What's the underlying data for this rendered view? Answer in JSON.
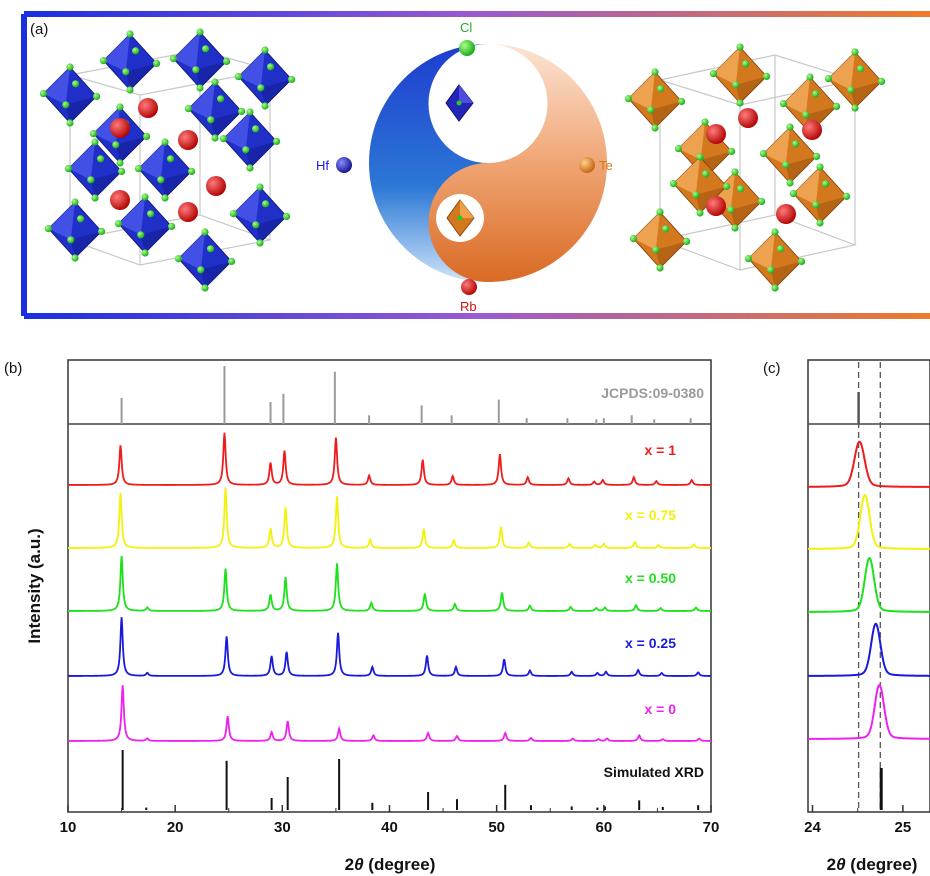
{
  "panel_labels": {
    "a": "(a)",
    "b": "(b)",
    "c": "(c)"
  },
  "elements": {
    "cl": "Cl",
    "hf": "Hf",
    "te": "Te",
    "rb": "Rb"
  },
  "colors": {
    "hf_octahedra": "#1f2fc8",
    "te_octahedra": "#d4781e",
    "cl_atoms": "#22cc22",
    "rb_atoms": "#cc1111"
  },
  "chart_data": [
    {
      "type": "line",
      "panel": "(b)",
      "xlabel_prefix": "2",
      "xlabel_theta": "θ",
      "xlabel_suffix": " (degree)",
      "ylabel": "Intensity (a.u.)",
      "xlim": [
        10,
        70
      ],
      "xticks": [
        10,
        20,
        30,
        40,
        50,
        60,
        70
      ],
      "reference_label": "JCPDS:09-0380",
      "simulated_label": "Simulated XRD",
      "reference_peaks": [
        {
          "x": 15.0,
          "h": 0.45
        },
        {
          "x": 24.6,
          "h": 1.0
        },
        {
          "x": 28.9,
          "h": 0.38
        },
        {
          "x": 30.1,
          "h": 0.52
        },
        {
          "x": 34.9,
          "h": 0.9
        },
        {
          "x": 38.1,
          "h": 0.15
        },
        {
          "x": 43.0,
          "h": 0.32
        },
        {
          "x": 45.8,
          "h": 0.15
        },
        {
          "x": 50.2,
          "h": 0.42
        },
        {
          "x": 52.8,
          "h": 0.1
        },
        {
          "x": 56.6,
          "h": 0.1
        },
        {
          "x": 59.3,
          "h": 0.08
        },
        {
          "x": 60.0,
          "h": 0.1
        },
        {
          "x": 62.6,
          "h": 0.15
        },
        {
          "x": 64.7,
          "h": 0.08
        },
        {
          "x": 68.1,
          "h": 0.1
        }
      ],
      "simulated_peaks": [
        {
          "x": 15.1,
          "h": 1.0
        },
        {
          "x": 17.3,
          "h": 0.04
        },
        {
          "x": 24.8,
          "h": 0.82
        },
        {
          "x": 29.0,
          "h": 0.2
        },
        {
          "x": 30.5,
          "h": 0.55
        },
        {
          "x": 35.3,
          "h": 0.85
        },
        {
          "x": 38.4,
          "h": 0.12
        },
        {
          "x": 43.6,
          "h": 0.3
        },
        {
          "x": 46.3,
          "h": 0.18
        },
        {
          "x": 50.8,
          "h": 0.42
        },
        {
          "x": 53.2,
          "h": 0.08
        },
        {
          "x": 57.0,
          "h": 0.06
        },
        {
          "x": 59.4,
          "h": 0.04
        },
        {
          "x": 60.1,
          "h": 0.06
        },
        {
          "x": 63.3,
          "h": 0.16
        },
        {
          "x": 65.5,
          "h": 0.05
        },
        {
          "x": 68.8,
          "h": 0.08
        }
      ],
      "series": [
        {
          "name": "x = 1",
          "color": "#ee1c1c",
          "peaks": [
            {
              "x": 14.9,
              "h": 0.72
            },
            {
              "x": 24.6,
              "h": 0.95
            },
            {
              "x": 28.9,
              "h": 0.4
            },
            {
              "x": 30.2,
              "h": 0.62
            },
            {
              "x": 35.0,
              "h": 0.86
            },
            {
              "x": 38.1,
              "h": 0.17
            },
            {
              "x": 43.1,
              "h": 0.46
            },
            {
              "x": 45.9,
              "h": 0.16
            },
            {
              "x": 50.3,
              "h": 0.56
            },
            {
              "x": 52.9,
              "h": 0.14
            },
            {
              "x": 56.7,
              "h": 0.12
            },
            {
              "x": 59.1,
              "h": 0.06
            },
            {
              "x": 59.9,
              "h": 0.09
            },
            {
              "x": 62.8,
              "h": 0.14
            },
            {
              "x": 64.9,
              "h": 0.07
            },
            {
              "x": 68.2,
              "h": 0.09
            }
          ]
        },
        {
          "name": "x = 0.75",
          "color": "#f2f20c",
          "peaks": [
            {
              "x": 14.9,
              "h": 0.92
            },
            {
              "x": 24.7,
              "h": 1.0
            },
            {
              "x": 28.9,
              "h": 0.32
            },
            {
              "x": 30.3,
              "h": 0.68
            },
            {
              "x": 35.1,
              "h": 0.86
            },
            {
              "x": 38.2,
              "h": 0.14
            },
            {
              "x": 43.2,
              "h": 0.32
            },
            {
              "x": 46.0,
              "h": 0.13
            },
            {
              "x": 50.4,
              "h": 0.35
            },
            {
              "x": 53.0,
              "h": 0.09
            },
            {
              "x": 56.8,
              "h": 0.07
            },
            {
              "x": 59.2,
              "h": 0.05
            },
            {
              "x": 60.0,
              "h": 0.07
            },
            {
              "x": 62.9,
              "h": 0.1
            },
            {
              "x": 65.1,
              "h": 0.05
            },
            {
              "x": 68.4,
              "h": 0.06
            }
          ]
        },
        {
          "name": "x = 0.50",
          "color": "#1de11d",
          "peaks": [
            {
              "x": 15.0,
              "h": 0.95
            },
            {
              "x": 17.4,
              "h": 0.06
            },
            {
              "x": 24.7,
              "h": 0.73
            },
            {
              "x": 28.9,
              "h": 0.28
            },
            {
              "x": 30.3,
              "h": 0.58
            },
            {
              "x": 35.1,
              "h": 0.82
            },
            {
              "x": 38.3,
              "h": 0.14
            },
            {
              "x": 43.3,
              "h": 0.3
            },
            {
              "x": 46.1,
              "h": 0.12
            },
            {
              "x": 50.5,
              "h": 0.32
            },
            {
              "x": 53.1,
              "h": 0.09
            },
            {
              "x": 56.9,
              "h": 0.07
            },
            {
              "x": 59.3,
              "h": 0.05
            },
            {
              "x": 60.1,
              "h": 0.06
            },
            {
              "x": 63.0,
              "h": 0.1
            },
            {
              "x": 65.3,
              "h": 0.05
            },
            {
              "x": 68.6,
              "h": 0.06
            }
          ]
        },
        {
          "name": "x = 0.25",
          "color": "#1a1add",
          "peaks": [
            {
              "x": 15.0,
              "h": 0.98
            },
            {
              "x": 17.4,
              "h": 0.05
            },
            {
              "x": 24.8,
              "h": 0.66
            },
            {
              "x": 29.0,
              "h": 0.33
            },
            {
              "x": 30.4,
              "h": 0.4
            },
            {
              "x": 35.2,
              "h": 0.72
            },
            {
              "x": 38.4,
              "h": 0.15
            },
            {
              "x": 43.5,
              "h": 0.34
            },
            {
              "x": 46.2,
              "h": 0.15
            },
            {
              "x": 50.7,
              "h": 0.28
            },
            {
              "x": 53.1,
              "h": 0.09
            },
            {
              "x": 57.0,
              "h": 0.07
            },
            {
              "x": 59.4,
              "h": 0.05
            },
            {
              "x": 60.2,
              "h": 0.07
            },
            {
              "x": 63.2,
              "h": 0.1
            },
            {
              "x": 65.4,
              "h": 0.05
            },
            {
              "x": 68.8,
              "h": 0.06
            }
          ]
        },
        {
          "name": "x = 0",
          "color": "#ee22ee",
          "peaks": [
            {
              "x": 15.1,
              "h": 0.9
            },
            {
              "x": 17.4,
              "h": 0.04
            },
            {
              "x": 24.9,
              "h": 0.4
            },
            {
              "x": 29.0,
              "h": 0.14
            },
            {
              "x": 30.5,
              "h": 0.32
            },
            {
              "x": 35.3,
              "h": 0.2
            },
            {
              "x": 38.5,
              "h": 0.09
            },
            {
              "x": 43.6,
              "h": 0.13
            },
            {
              "x": 46.3,
              "h": 0.08
            },
            {
              "x": 50.8,
              "h": 0.13
            },
            {
              "x": 53.2,
              "h": 0.05
            },
            {
              "x": 57.1,
              "h": 0.04
            },
            {
              "x": 59.5,
              "h": 0.03
            },
            {
              "x": 60.3,
              "h": 0.04
            },
            {
              "x": 63.3,
              "h": 0.09
            },
            {
              "x": 65.5,
              "h": 0.03
            },
            {
              "x": 68.9,
              "h": 0.04
            }
          ]
        }
      ]
    },
    {
      "type": "line",
      "panel": "(c)",
      "xlabel_prefix": "2",
      "xlabel_theta": "θ",
      "xlabel_suffix": " (degree)",
      "xlim": [
        23.95,
        25.3
      ],
      "xticks": [
        24,
        25
      ],
      "reference_lines": [
        24.51,
        24.75
      ],
      "reference_peak": {
        "x": 24.51,
        "h": 1.0
      },
      "simulated_peak": {
        "x": 24.76,
        "h": 1.0
      },
      "series": [
        {
          "name": "x = 1",
          "color": "#ee1c1c",
          "peak": {
            "x": 24.52,
            "width": 0.12,
            "h": 0.78
          }
        },
        {
          "name": "x = 0.75",
          "color": "#f2f20c",
          "peak": {
            "x": 24.58,
            "width": 0.11,
            "h": 0.93
          }
        },
        {
          "name": "x = 0.50",
          "color": "#1de11d",
          "peak": {
            "x": 24.63,
            "width": 0.11,
            "h": 0.93
          }
        },
        {
          "name": "x = 0.25",
          "color": "#1a1add",
          "peak": {
            "x": 24.7,
            "width": 0.11,
            "h": 0.9
          }
        },
        {
          "name": "x = 0",
          "color": "#ee22ee",
          "peak": {
            "x": 24.74,
            "width": 0.11,
            "h": 0.93
          }
        }
      ]
    }
  ]
}
